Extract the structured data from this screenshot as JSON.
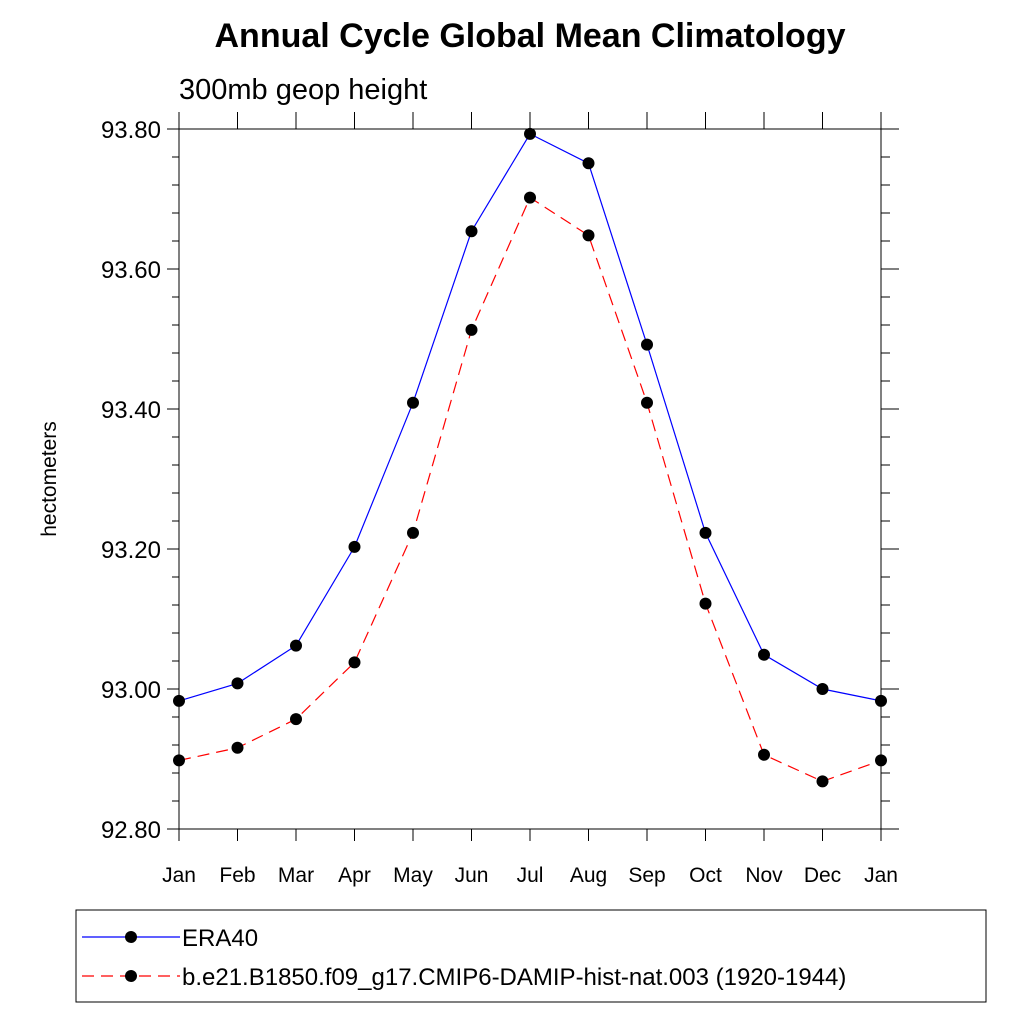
{
  "chart_data": {
    "type": "line",
    "title": "Annual Cycle Global Mean Climatology",
    "subtitle": "300mb geop height",
    "xlabel": "",
    "ylabel": "hectometers",
    "categories": [
      "Jan",
      "Feb",
      "Mar",
      "Apr",
      "May",
      "Jun",
      "Jul",
      "Aug",
      "Sep",
      "Oct",
      "Nov",
      "Dec",
      "Jan"
    ],
    "ylim": [
      92.8,
      93.8
    ],
    "yticks": [
      92.8,
      93.0,
      93.2,
      93.4,
      93.6,
      93.8
    ],
    "ytick_labels": [
      "92.80",
      "93.00",
      "93.20",
      "93.40",
      "93.60",
      "93.80"
    ],
    "grid": false,
    "legend_position": "bottom",
    "series": [
      {
        "name": "ERA40",
        "color": "#0000ff",
        "line_style": "solid",
        "marker": "circle",
        "values": [
          92.983,
          93.008,
          93.062,
          93.203,
          93.409,
          93.654,
          93.793,
          93.751,
          93.492,
          93.223,
          93.049,
          93.0,
          92.983
        ]
      },
      {
        "name": "b.e21.B1850.f09_g17.CMIP6-DAMIP-hist-nat.003 (1920-1944)",
        "color": "#ff0000",
        "line_style": "dashed",
        "marker": "circle",
        "values": [
          92.898,
          92.916,
          92.957,
          93.038,
          93.223,
          93.513,
          93.702,
          93.648,
          93.409,
          93.122,
          92.906,
          92.868,
          92.898
        ]
      }
    ]
  }
}
